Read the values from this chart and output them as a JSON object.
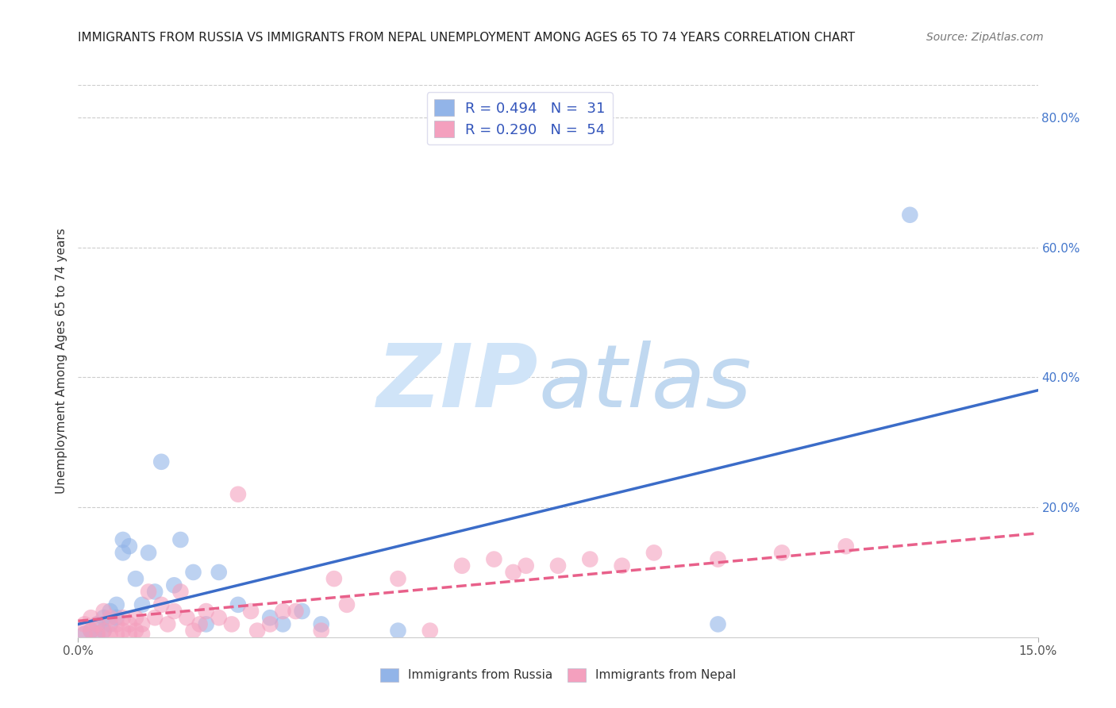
{
  "title": "IMMIGRANTS FROM RUSSIA VS IMMIGRANTS FROM NEPAL UNEMPLOYMENT AMONG AGES 65 TO 74 YEARS CORRELATION CHART",
  "source": "Source: ZipAtlas.com",
  "ylabel": "Unemployment Among Ages 65 to 74 years",
  "right_yticks": [
    "80.0%",
    "60.0%",
    "40.0%",
    "20.0%"
  ],
  "right_ytick_vals": [
    0.8,
    0.6,
    0.4,
    0.2
  ],
  "legend_russia_R": "R = 0.494",
  "legend_russia_N": "N =  31",
  "legend_nepal_R": "R = 0.290",
  "legend_nepal_N": "N =  54",
  "russia_color": "#92B4E8",
  "nepal_color": "#F4A0BE",
  "russia_line_color": "#3B6CC8",
  "nepal_line_color": "#E8608A",
  "background_color": "#FFFFFF",
  "russia_x": [
    0.001,
    0.002,
    0.003,
    0.003,
    0.004,
    0.004,
    0.005,
    0.005,
    0.006,
    0.006,
    0.007,
    0.007,
    0.008,
    0.009,
    0.01,
    0.011,
    0.012,
    0.013,
    0.015,
    0.016,
    0.018,
    0.02,
    0.022,
    0.025,
    0.03,
    0.032,
    0.035,
    0.038,
    0.05,
    0.1,
    0.13
  ],
  "russia_y": [
    0.005,
    0.01,
    0.005,
    0.02,
    0.01,
    0.03,
    0.02,
    0.04,
    0.03,
    0.05,
    0.13,
    0.15,
    0.14,
    0.09,
    0.05,
    0.13,
    0.07,
    0.27,
    0.08,
    0.15,
    0.1,
    0.02,
    0.1,
    0.05,
    0.03,
    0.02,
    0.04,
    0.02,
    0.01,
    0.02,
    0.65
  ],
  "nepal_x": [
    0.001,
    0.001,
    0.002,
    0.002,
    0.003,
    0.003,
    0.004,
    0.004,
    0.005,
    0.005,
    0.006,
    0.006,
    0.007,
    0.007,
    0.008,
    0.008,
    0.009,
    0.009,
    0.01,
    0.01,
    0.011,
    0.012,
    0.013,
    0.014,
    0.015,
    0.016,
    0.017,
    0.018,
    0.019,
    0.02,
    0.022,
    0.024,
    0.025,
    0.027,
    0.028,
    0.03,
    0.032,
    0.034,
    0.038,
    0.04,
    0.042,
    0.05,
    0.055,
    0.06,
    0.065,
    0.068,
    0.07,
    0.075,
    0.08,
    0.085,
    0.09,
    0.1,
    0.11,
    0.12
  ],
  "nepal_y": [
    0.005,
    0.02,
    0.01,
    0.03,
    0.005,
    0.02,
    0.01,
    0.04,
    0.005,
    0.03,
    0.005,
    0.02,
    0.01,
    0.03,
    0.005,
    0.02,
    0.01,
    0.03,
    0.005,
    0.02,
    0.07,
    0.03,
    0.05,
    0.02,
    0.04,
    0.07,
    0.03,
    0.01,
    0.02,
    0.04,
    0.03,
    0.02,
    0.22,
    0.04,
    0.01,
    0.02,
    0.04,
    0.04,
    0.01,
    0.09,
    0.05,
    0.09,
    0.01,
    0.11,
    0.12,
    0.1,
    0.11,
    0.11,
    0.12,
    0.11,
    0.13,
    0.12,
    0.13,
    0.14
  ],
  "xlim": [
    0.0,
    0.15
  ],
  "ylim": [
    0.0,
    0.85
  ],
  "russia_line_x0": 0.0,
  "russia_line_y0": 0.02,
  "russia_line_x1": 0.15,
  "russia_line_y1": 0.38,
  "nepal_line_x0": 0.0,
  "nepal_line_y0": 0.025,
  "nepal_line_x1": 0.15,
  "nepal_line_y1": 0.16
}
